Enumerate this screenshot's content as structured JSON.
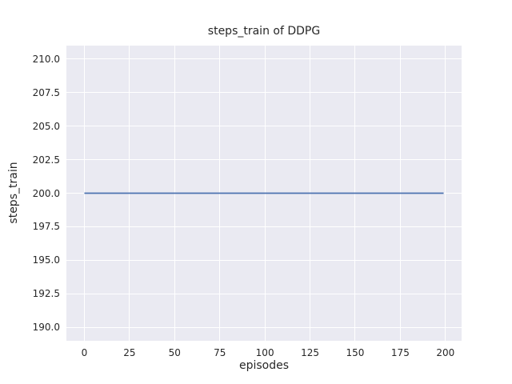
{
  "chart_data": {
    "type": "line",
    "title": "steps_train of DDPG",
    "xlabel": "episodes",
    "ylabel": "steps_train",
    "xlim": [
      -9.95,
      208.95
    ],
    "ylim": [
      189.0,
      211.0
    ],
    "xticks": [
      "0",
      "25",
      "50",
      "75",
      "100",
      "125",
      "150",
      "175",
      "200"
    ],
    "yticks": [
      "190.0",
      "192.5",
      "195.0",
      "197.5",
      "200.0",
      "202.5",
      "205.0",
      "207.5",
      "210.0"
    ],
    "grid": true,
    "legend_position": "none",
    "series": [
      {
        "name": "steps_train",
        "color": "#4c72b0",
        "x": [
          0,
          199
        ],
        "values": [
          200,
          200
        ]
      }
    ],
    "colors": {
      "plot_background": "#eaeaf2",
      "gridline": "#ffffff",
      "text": "#262626",
      "line": "#4c72b0"
    }
  }
}
